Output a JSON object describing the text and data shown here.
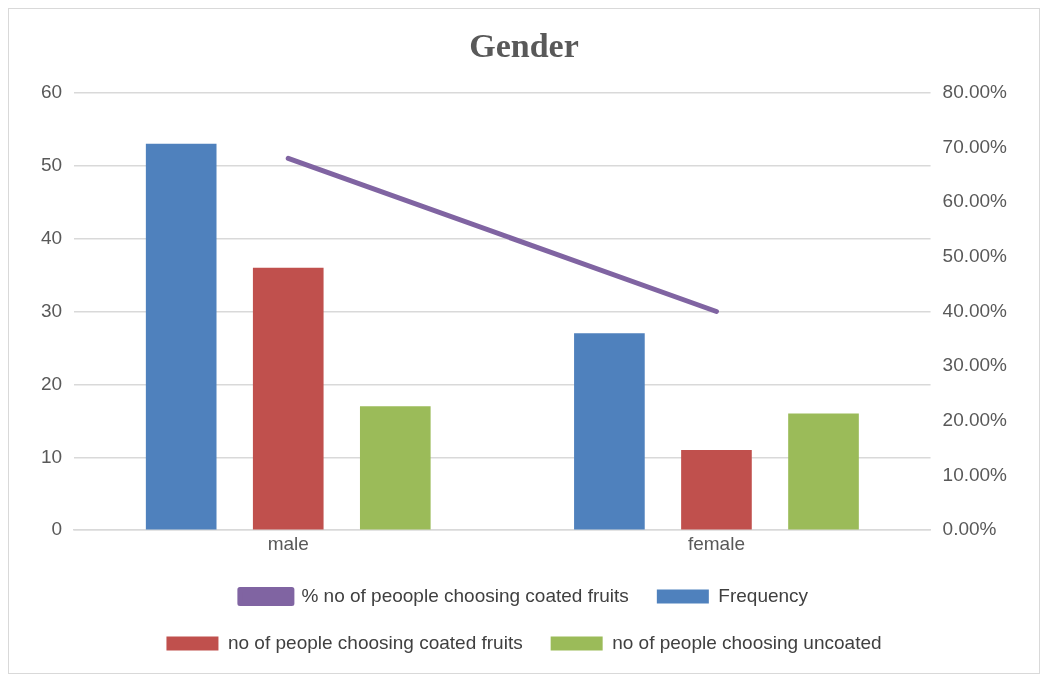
{
  "chart_data": {
    "type": "bar",
    "title": "Gender",
    "categories": [
      "male",
      "female"
    ],
    "series": [
      {
        "name": "Frequency",
        "color": "#4f81bd",
        "values": [
          53,
          27
        ]
      },
      {
        "name": "no of people choosing coated fruits",
        "color": "#c0504d",
        "values": [
          36,
          11
        ]
      },
      {
        "name": "no of people choosing uncoated",
        "color": "#9bbb59",
        "values": [
          17,
          16
        ]
      },
      {
        "name": "% no of peoople choosing coated fruits",
        "color": "#8064a2",
        "values": [
          68,
          40
        ],
        "type": "line",
        "axis": "y2",
        "marker": "none"
      }
    ],
    "ylim": [
      0,
      60
    ],
    "yticks": [
      0,
      10,
      20,
      30,
      40,
      50,
      60
    ],
    "y2lim": [
      0,
      80
    ],
    "y2ticks": [
      {
        "value": 0,
        "label": "0.00%"
      },
      {
        "value": 10,
        "label": "10.00%"
      },
      {
        "value": 20,
        "label": "20.00%"
      },
      {
        "value": 30,
        "label": "30.00%"
      },
      {
        "value": 40,
        "label": "40.00%"
      },
      {
        "value": 50,
        "label": "50.00%"
      },
      {
        "value": 60,
        "label": "60.00%"
      },
      {
        "value": 70,
        "label": "70.00%"
      },
      {
        "value": 80,
        "label": "80.00%"
      }
    ],
    "grid": "y",
    "legend": "bottom"
  }
}
